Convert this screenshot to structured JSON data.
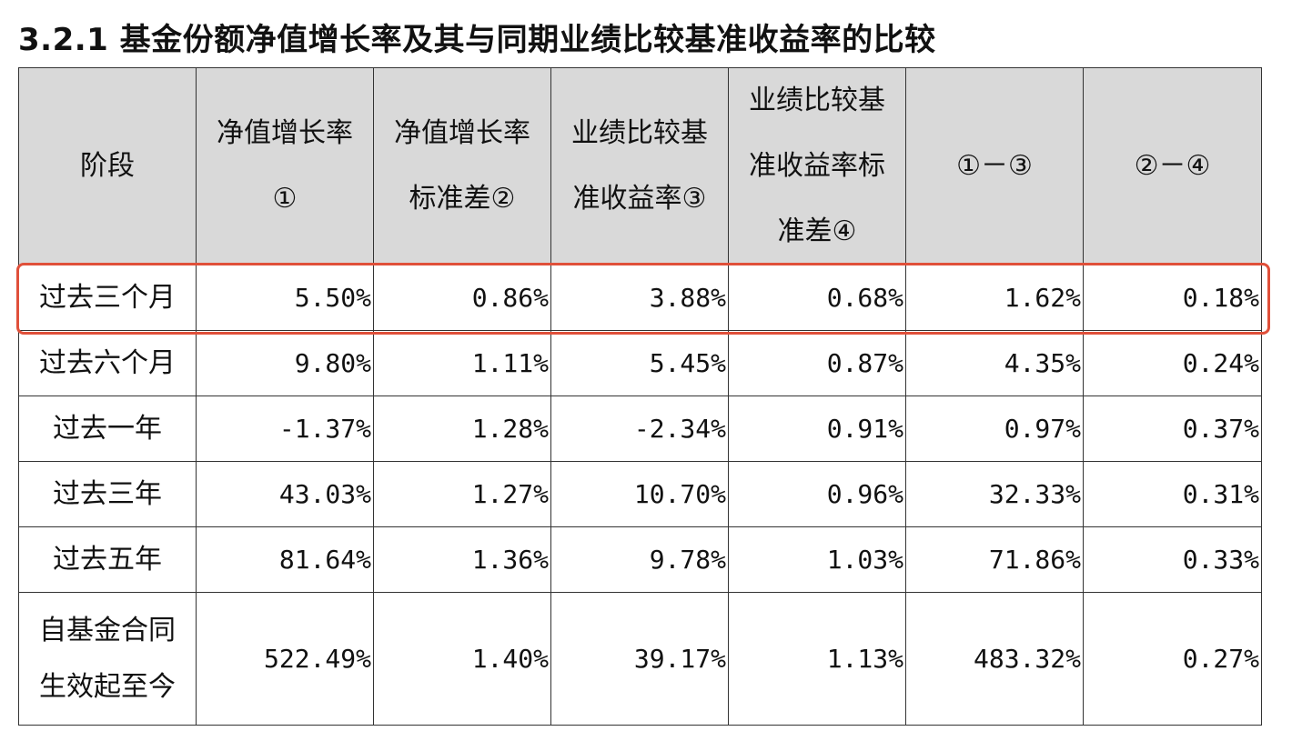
{
  "title": "3.2.1 基金份额净值增长率及其与同期业绩比较基准收益率的比较",
  "headers": [
    [
      "阶段"
    ],
    [
      "净值增长率",
      "①"
    ],
    [
      "净值增长率",
      "标准差②"
    ],
    [
      "业绩比较基",
      "准收益率③"
    ],
    [
      "业绩比较基",
      "准收益率标",
      "准差④"
    ],
    [
      "①－③"
    ],
    [
      "②－④"
    ]
  ],
  "rows": [
    {
      "stage": [
        "过去三个月"
      ],
      "values": [
        "5.50%",
        "0.86%",
        "3.88%",
        "0.68%",
        "1.62%",
        "0.18%"
      ]
    },
    {
      "stage": [
        "过去六个月"
      ],
      "values": [
        "9.80%",
        "1.11%",
        "5.45%",
        "0.87%",
        "4.35%",
        "0.24%"
      ]
    },
    {
      "stage": [
        "过去一年"
      ],
      "values": [
        "-1.37%",
        "1.28%",
        "-2.34%",
        "0.91%",
        "0.97%",
        "0.37%"
      ]
    },
    {
      "stage": [
        "过去三年"
      ],
      "values": [
        "43.03%",
        "1.27%",
        "10.70%",
        "0.96%",
        "32.33%",
        "0.31%"
      ]
    },
    {
      "stage": [
        "过去五年"
      ],
      "values": [
        "81.64%",
        "1.36%",
        "9.78%",
        "1.03%",
        "71.86%",
        "0.33%"
      ]
    },
    {
      "stage": [
        "自基金合同",
        "生效起至今"
      ],
      "values": [
        "522.49%",
        "1.40%",
        "39.17%",
        "1.13%",
        "483.32%",
        "0.27%"
      ]
    }
  ],
  "highlight_color": "#e0503a",
  "header_bg": "#d9d9d9"
}
